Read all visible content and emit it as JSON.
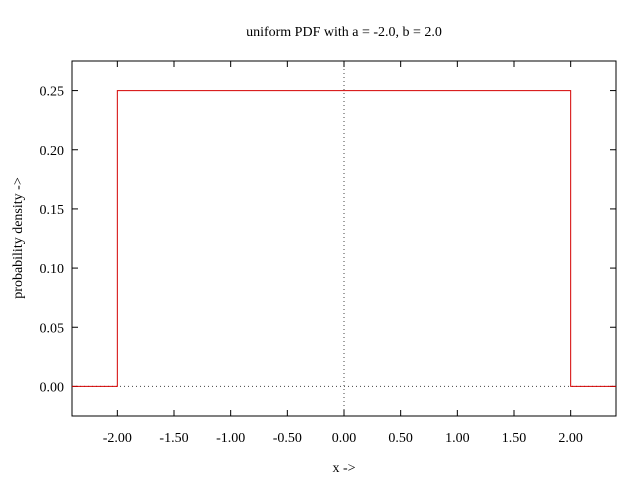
{
  "chart_data": {
    "type": "line",
    "title": "uniform PDF with a = -2.0, b = 2.0",
    "xlabel": "x ->",
    "ylabel": "probability density ->",
    "xlim": [
      -2.4,
      2.4
    ],
    "ylim": [
      -0.025,
      0.275
    ],
    "x_ticks": [
      -2.0,
      -1.5,
      -1.0,
      -0.5,
      0.0,
      0.5,
      1.0,
      1.5,
      2.0
    ],
    "x_tick_labels": [
      "-2.00",
      "-1.50",
      "-1.00",
      "-0.50",
      "0.00",
      "0.50",
      "1.00",
      "1.50",
      "2.00"
    ],
    "y_ticks": [
      0.0,
      0.05,
      0.1,
      0.15,
      0.2,
      0.25
    ],
    "y_tick_labels": [
      "0.00",
      "0.05",
      "0.10",
      "0.15",
      "0.20",
      "0.25"
    ],
    "zero_axes": true,
    "grid": false,
    "series": [
      {
        "color": "#d40000",
        "x": [
          -2.4,
          -2.0,
          -2.0,
          2.0,
          2.0,
          2.4
        ],
        "y": [
          0.0,
          0.0,
          0.25,
          0.25,
          0.0,
          0.0
        ]
      }
    ]
  }
}
